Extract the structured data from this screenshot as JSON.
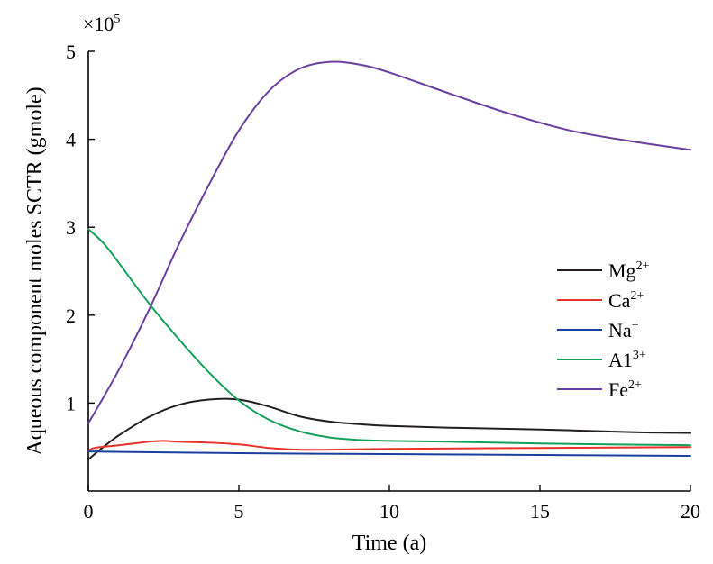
{
  "chart_data": {
    "type": "line",
    "title": "",
    "xlabel": "Time (a)",
    "ylabel": "Aqueous component moles SCTR (gmole)",
    "y_multiplier": "×10",
    "y_multiplier_exp": "5",
    "xlim": [
      0,
      20
    ],
    "ylim": [
      0,
      5
    ],
    "x_ticks": [
      0,
      5,
      10,
      15,
      20
    ],
    "y_ticks": [
      1,
      2,
      3,
      4,
      5
    ],
    "legend_position": "center-right",
    "series": [
      {
        "name": "Mg",
        "sup": "2+",
        "color": "#231f20",
        "x": [
          0,
          0.5,
          1,
          2,
          3,
          4,
          5,
          6,
          7,
          8,
          9,
          10,
          12,
          15,
          18,
          20
        ],
        "y": [
          0.36,
          0.5,
          0.63,
          0.84,
          0.98,
          1.04,
          1.04,
          0.96,
          0.85,
          0.79,
          0.76,
          0.74,
          0.72,
          0.7,
          0.67,
          0.66
        ]
      },
      {
        "name": "Ca",
        "sup": "2+",
        "color": "#e8322a",
        "x": [
          0,
          0.2,
          1,
          2,
          2.5,
          3,
          4,
          5,
          6,
          7,
          8,
          10,
          15,
          20
        ],
        "y": [
          0.45,
          0.49,
          0.52,
          0.56,
          0.57,
          0.56,
          0.55,
          0.53,
          0.49,
          0.47,
          0.47,
          0.48,
          0.49,
          0.5
        ]
      },
      {
        "name": "Na",
        "sup": "+",
        "color": "#1a3f9e",
        "x": [
          0,
          5,
          10,
          15,
          20
        ],
        "y": [
          0.45,
          0.43,
          0.42,
          0.41,
          0.4
        ]
      },
      {
        "name": "A1",
        "sup": "3+",
        "color": "#13a05a",
        "x": [
          0,
          0.5,
          1,
          2,
          3,
          4,
          5,
          6,
          7,
          8,
          9,
          10,
          12,
          15,
          20
        ],
        "y": [
          2.98,
          2.82,
          2.6,
          2.14,
          1.73,
          1.35,
          1.03,
          0.81,
          0.68,
          0.61,
          0.58,
          0.57,
          0.56,
          0.54,
          0.52
        ]
      },
      {
        "name": "Fe",
        "sup": "2+",
        "color": "#6b3fa0",
        "x": [
          0,
          1,
          2,
          3,
          4,
          5,
          6,
          7,
          8,
          9,
          10,
          12,
          14,
          16,
          18,
          20
        ],
        "y": [
          0.77,
          1.37,
          2.05,
          2.8,
          3.48,
          4.1,
          4.55,
          4.8,
          4.88,
          4.85,
          4.76,
          4.52,
          4.29,
          4.1,
          3.98,
          3.88
        ]
      }
    ]
  }
}
